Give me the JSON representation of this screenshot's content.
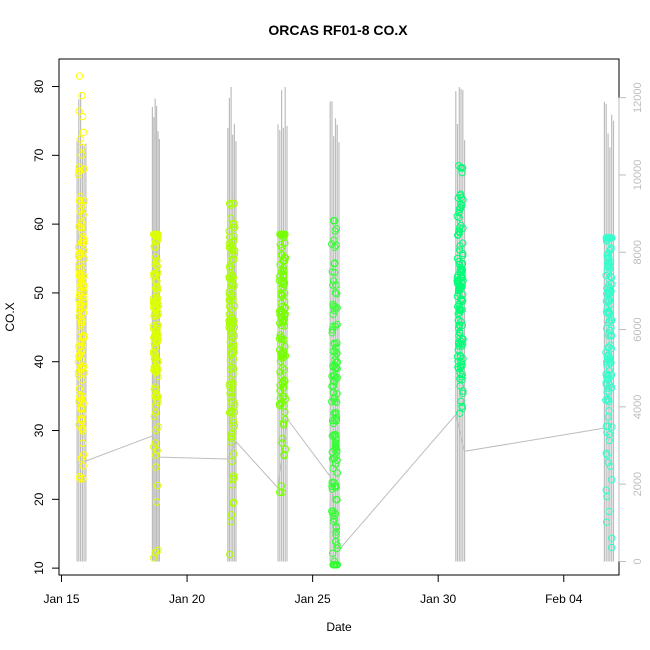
{
  "chart_data": {
    "type": "scatter",
    "title": "ORCAS RF01-8 CO.X",
    "xlabel": "Date",
    "ylabel": "CO.X",
    "x_ticks": [
      "Jan 15",
      "Jan 20",
      "Jan 25",
      "Jan 30",
      "Feb 04"
    ],
    "x_tick_days": [
      15,
      20,
      25,
      30,
      35
    ],
    "xlim_days": [
      14.9,
      37.2
    ],
    "y_ticks": [
      10,
      20,
      30,
      40,
      50,
      60,
      70,
      80
    ],
    "ylim": [
      9.0,
      84.0
    ],
    "y2_ticks": [
      0,
      2000,
      4000,
      6000,
      8000,
      10000,
      12000
    ],
    "y2lim": [
      -350,
      13000
    ],
    "y2_color": "#bdbdbd",
    "grid": false,
    "series_note_color_scale": "flight color ramp yellow to cyan",
    "flights": [
      {
        "start": 15.62,
        "end": 15.97,
        "color": "#ffff00",
        "co_min": 23,
        "co_max": 81.5,
        "co_center": 47,
        "co_spread": 11,
        "alt_max": 12200
      },
      {
        "start": 18.62,
        "end": 18.9,
        "color": "#ddff00",
        "co_min": 11.5,
        "co_max": 58.5,
        "co_center": 46,
        "co_spread": 8,
        "alt_max": 12100
      },
      {
        "start": 21.62,
        "end": 21.95,
        "color": "#aaff00",
        "co_min": 12,
        "co_max": 63,
        "co_center": 44,
        "co_spread": 9,
        "alt_max": 12300
      },
      {
        "start": 23.62,
        "end": 23.98,
        "color": "#77ff00",
        "co_min": 21,
        "co_max": 58.5,
        "co_center": 47,
        "co_spread": 10,
        "alt_max": 12400
      },
      {
        "start": 25.7,
        "end": 26.05,
        "color": "#33ff33",
        "co_min": 10.5,
        "co_max": 60.5,
        "co_center": 30,
        "co_spread": 14,
        "alt_max": 12000
      },
      {
        "start": 30.7,
        "end": 31.05,
        "color": "#00ff77",
        "co_min": 32.5,
        "co_max": 68.5,
        "co_center": 50,
        "co_spread": 7,
        "alt_max": 12300
      },
      {
        "start": 36.62,
        "end": 36.98,
        "color": "#33ffcc",
        "co_min": 13,
        "co_max": 58,
        "co_center": 45,
        "co_spread": 10,
        "alt_max": 12000
      }
    ],
    "altitude_connector": [
      {
        "day": 15.97,
        "alt": 2600
      },
      {
        "day": 18.62,
        "alt": 3250
      },
      {
        "day": 18.9,
        "alt": 2700
      },
      {
        "day": 21.62,
        "alt": 2650
      },
      {
        "day": 21.95,
        "alt": 3100
      },
      {
        "day": 23.62,
        "alt": 1900
      },
      {
        "day": 23.98,
        "alt": 3700
      },
      {
        "day": 25.7,
        "alt": 2200
      },
      {
        "day": 26.05,
        "alt": 300
      },
      {
        "day": 30.7,
        "alt": 3800
      },
      {
        "day": 31.05,
        "alt": 2850
      },
      {
        "day": 36.62,
        "alt": 3450
      }
    ]
  }
}
